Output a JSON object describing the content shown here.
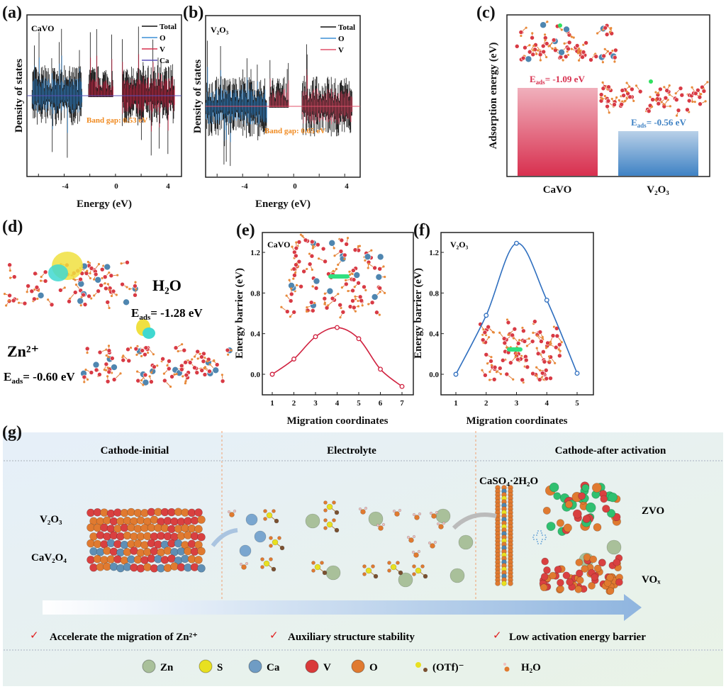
{
  "panels": {
    "a": "(a)",
    "b": "(b)",
    "c": "(c)",
    "d": "(d)",
    "e": "(e)",
    "f": "(f)",
    "g": "(g)"
  },
  "chart_data": [
    {
      "id": "a",
      "type": "line",
      "title": "CaVO",
      "xlabel": "Energy (eV)",
      "ylabel": "Density of states",
      "xticks": [
        "-4",
        "0",
        "4"
      ],
      "xlim": [
        -6.9,
        5.2
      ],
      "legend": [
        "Total",
        "O",
        "V",
        "Ca"
      ],
      "series_colors": {
        "Total": "#111111",
        "O": "#3b8fd6",
        "V": "#d8304f",
        "Ca": "#5a4fb8"
      },
      "annotation": "Band gap: 0.53 eV",
      "band_gap_eV": 0.53,
      "valence_band": [
        -6.5,
        -2.6
      ],
      "conduction_bands": [
        [
          -2.1,
          -0.2
        ],
        [
          0.53,
          4.6
        ]
      ]
    },
    {
      "id": "b",
      "type": "line",
      "title": "V₂O₃",
      "xlabel": "Energy (eV)",
      "ylabel": "Density of states",
      "xticks": [
        "-4",
        "0",
        "4"
      ],
      "xlim": [
        -6.9,
        5.2
      ],
      "legend": [
        "Total",
        "O",
        "V"
      ],
      "series_colors": {
        "Total": "#111111",
        "O": "#3b8fd6",
        "V": "#e0506a"
      },
      "annotation": "Band gap: 0.65 eV",
      "band_gap_eV": 0.65,
      "valence_band": [
        -6.9,
        -2.1
      ],
      "conduction_bands": [
        [
          -1.9,
          -0.4
        ],
        [
          0.65,
          4.6
        ]
      ]
    },
    {
      "id": "c",
      "type": "bar",
      "ylabel": "Adsorption energy (eV)",
      "categories": [
        "CaVO",
        "V₂O₃"
      ],
      "values": [
        -1.09,
        -0.56
      ],
      "labels": [
        {
          "main": "E",
          "sub": "ads",
          "rest": "= -1.09 eV"
        },
        {
          "main": "E",
          "sub": "ads",
          "rest": "= -0.56 eV"
        }
      ],
      "colors": [
        "#d83a5a",
        "#3f82c4"
      ]
    },
    {
      "id": "e",
      "type": "line",
      "title": "CaVO",
      "xlabel": "Migration coordinates",
      "ylabel": "Energy barrier (eV)",
      "x": [
        1,
        2,
        3,
        4,
        5,
        6,
        7
      ],
      "y": [
        0.0,
        0.15,
        0.37,
        0.46,
        0.35,
        0.05,
        -0.12
      ],
      "xticks": [
        "1",
        "2",
        "3",
        "4",
        "5",
        "6",
        "7"
      ],
      "yticks": [
        "0.0",
        "0.4",
        "0.8",
        "1.2"
      ],
      "ylim": [
        -0.2,
        1.35
      ],
      "color": "#d0203e"
    },
    {
      "id": "f",
      "type": "line",
      "title": "V₂O₃",
      "xlabel": "Migration coordinates",
      "ylabel": "Energy barrier (eV)",
      "x": [
        1,
        2,
        3,
        4,
        5
      ],
      "y": [
        0.0,
        0.58,
        1.29,
        0.73,
        0.01
      ],
      "xticks": [
        "1",
        "2",
        "3",
        "4",
        "5"
      ],
      "yticks": [
        "0.0",
        "0.4",
        "0.8",
        "1.2"
      ],
      "ylim": [
        -0.2,
        1.35
      ],
      "color": "#2f6fbf"
    }
  ],
  "d": {
    "h2o": "H₂O",
    "h2o_eads": {
      "main": "E",
      "sub": "ads",
      "rest": "= -1.28 eV"
    },
    "zn": "Zn²⁺",
    "zn_eads": {
      "main": "E",
      "sub": "ads",
      "rest": "= -0.60 eV"
    }
  },
  "g": {
    "headers": [
      "Cathode-initial",
      "Electrolyte",
      "Cathode-after activation"
    ],
    "v2o3": "V₂O₃",
    "cav2o4": "CaV₂O₄",
    "caso4": "CaSO₄·2H₂O",
    "zvo": "ZVO",
    "vox": "VOₓ",
    "checks": [
      "Accelerate the migration of Zn²⁺",
      "Auxiliary structure stability",
      "Low activation energy barrier"
    ],
    "legend": [
      {
        "label": "Zn",
        "color": "#a9c09a"
      },
      {
        "label": "S",
        "color": "#e8e020"
      },
      {
        "label": "Ca",
        "color": "#6f9cc4"
      },
      {
        "label": "V",
        "color": "#d93a3a"
      },
      {
        "label": "O",
        "color": "#e07a30"
      },
      {
        "label": "(OTf)⁻"
      },
      {
        "label": "H₂O"
      }
    ]
  }
}
